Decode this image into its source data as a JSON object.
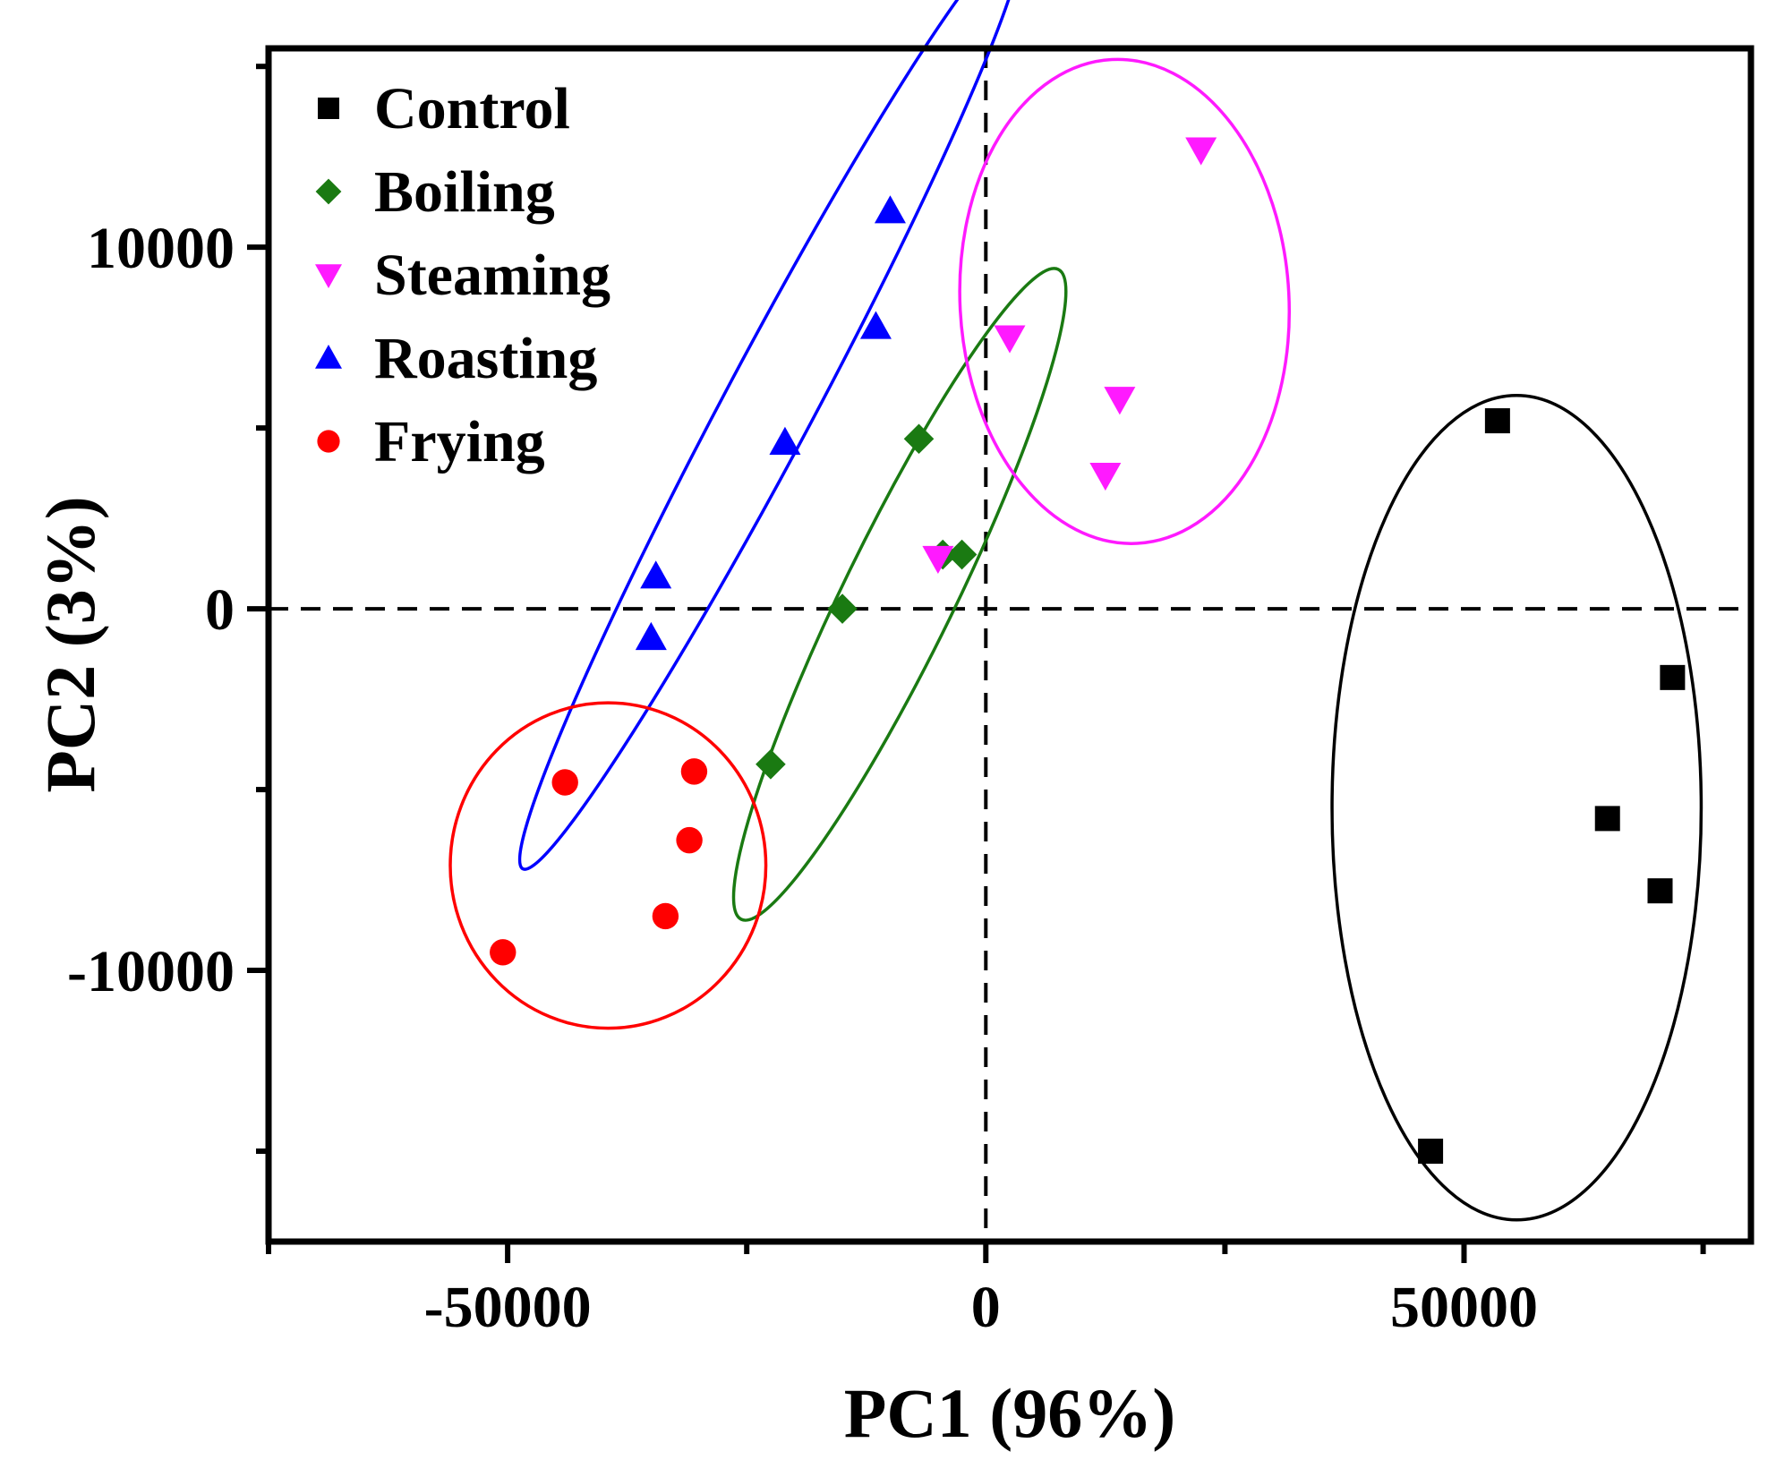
{
  "chart_data": {
    "type": "scatter",
    "xlabel": "PC1 (96%)",
    "ylabel": "PC2 (3%)",
    "xlim": [
      -75000,
      80000
    ],
    "ylim": [
      -17500,
      15500
    ],
    "x_ticks": [
      {
        "value": -50000,
        "label": "-50000"
      },
      {
        "value": 0,
        "label": "0"
      },
      {
        "value": 50000,
        "label": "50000"
      }
    ],
    "y_ticks": [
      {
        "value": -10000,
        "label": "-10000"
      },
      {
        "value": 0,
        "label": "0"
      },
      {
        "value": 10000,
        "label": "10000"
      }
    ],
    "x_minor_ticks": [
      -75000,
      -25000,
      25000,
      75000
    ],
    "y_minor_ticks": [
      -15000,
      -5000,
      5000,
      15000
    ],
    "reference_lines": {
      "x": 0,
      "y": 0,
      "style": "dashed"
    },
    "legend_position": "top-left",
    "series": [
      {
        "name": "Control",
        "marker": "square",
        "color": "#000000",
        "points": [
          [
            53500,
            5200
          ],
          [
            71800,
            -1900
          ],
          [
            65000,
            -5800
          ],
          [
            70500,
            -7800
          ],
          [
            46500,
            -15000
          ]
        ],
        "ellipse": {
          "cx": 55500,
          "cy": -5500,
          "rx": 19300,
          "ry": 11400,
          "angle": 0
        }
      },
      {
        "name": "Boiling",
        "marker": "diamond",
        "color": "#1a7a12",
        "points": [
          [
            -7000,
            4700
          ],
          [
            -4500,
            1500
          ],
          [
            -2500,
            1500
          ],
          [
            -15000,
            0
          ],
          [
            -22500,
            -4300
          ]
        ],
        "ellipse": {
          "cx": -9000,
          "cy": 400,
          "rx": 5800,
          "ry": 10000,
          "angle": 26
        }
      },
      {
        "name": "Steaming",
        "marker": "triangle-down",
        "color": "#ff1aff",
        "points": [
          [
            22500,
            12700
          ],
          [
            2500,
            7500
          ],
          [
            14000,
            5800
          ],
          [
            12500,
            3700
          ],
          [
            -5000,
            1400
          ]
        ],
        "ellipse": {
          "cx": 14500,
          "cy": 8500,
          "rx": 17200,
          "ry": 6700,
          "angle": -3
        }
      },
      {
        "name": "Roasting",
        "marker": "triangle-up",
        "color": "#0000ff",
        "points": [
          [
            -10000,
            11000
          ],
          [
            -11500,
            7800
          ],
          [
            -21000,
            4600
          ],
          [
            -34500,
            900
          ],
          [
            -35000,
            -800
          ]
        ],
        "ellipse": {
          "cx": -22500,
          "cy": 5700,
          "rx": 4700,
          "ry": 14600,
          "angle": 28
        }
      },
      {
        "name": "Frying",
        "marker": "circle",
        "color": "#ff0000",
        "points": [
          [
            -44000,
            -4800
          ],
          [
            -30500,
            -4500
          ],
          [
            -31000,
            -6400
          ],
          [
            -33500,
            -8500
          ],
          [
            -50500,
            -9500
          ]
        ],
        "ellipse": {
          "cx": -39500,
          "cy": -7100,
          "rx": 16500,
          "ry": 4500,
          "angle": 0
        }
      }
    ]
  }
}
